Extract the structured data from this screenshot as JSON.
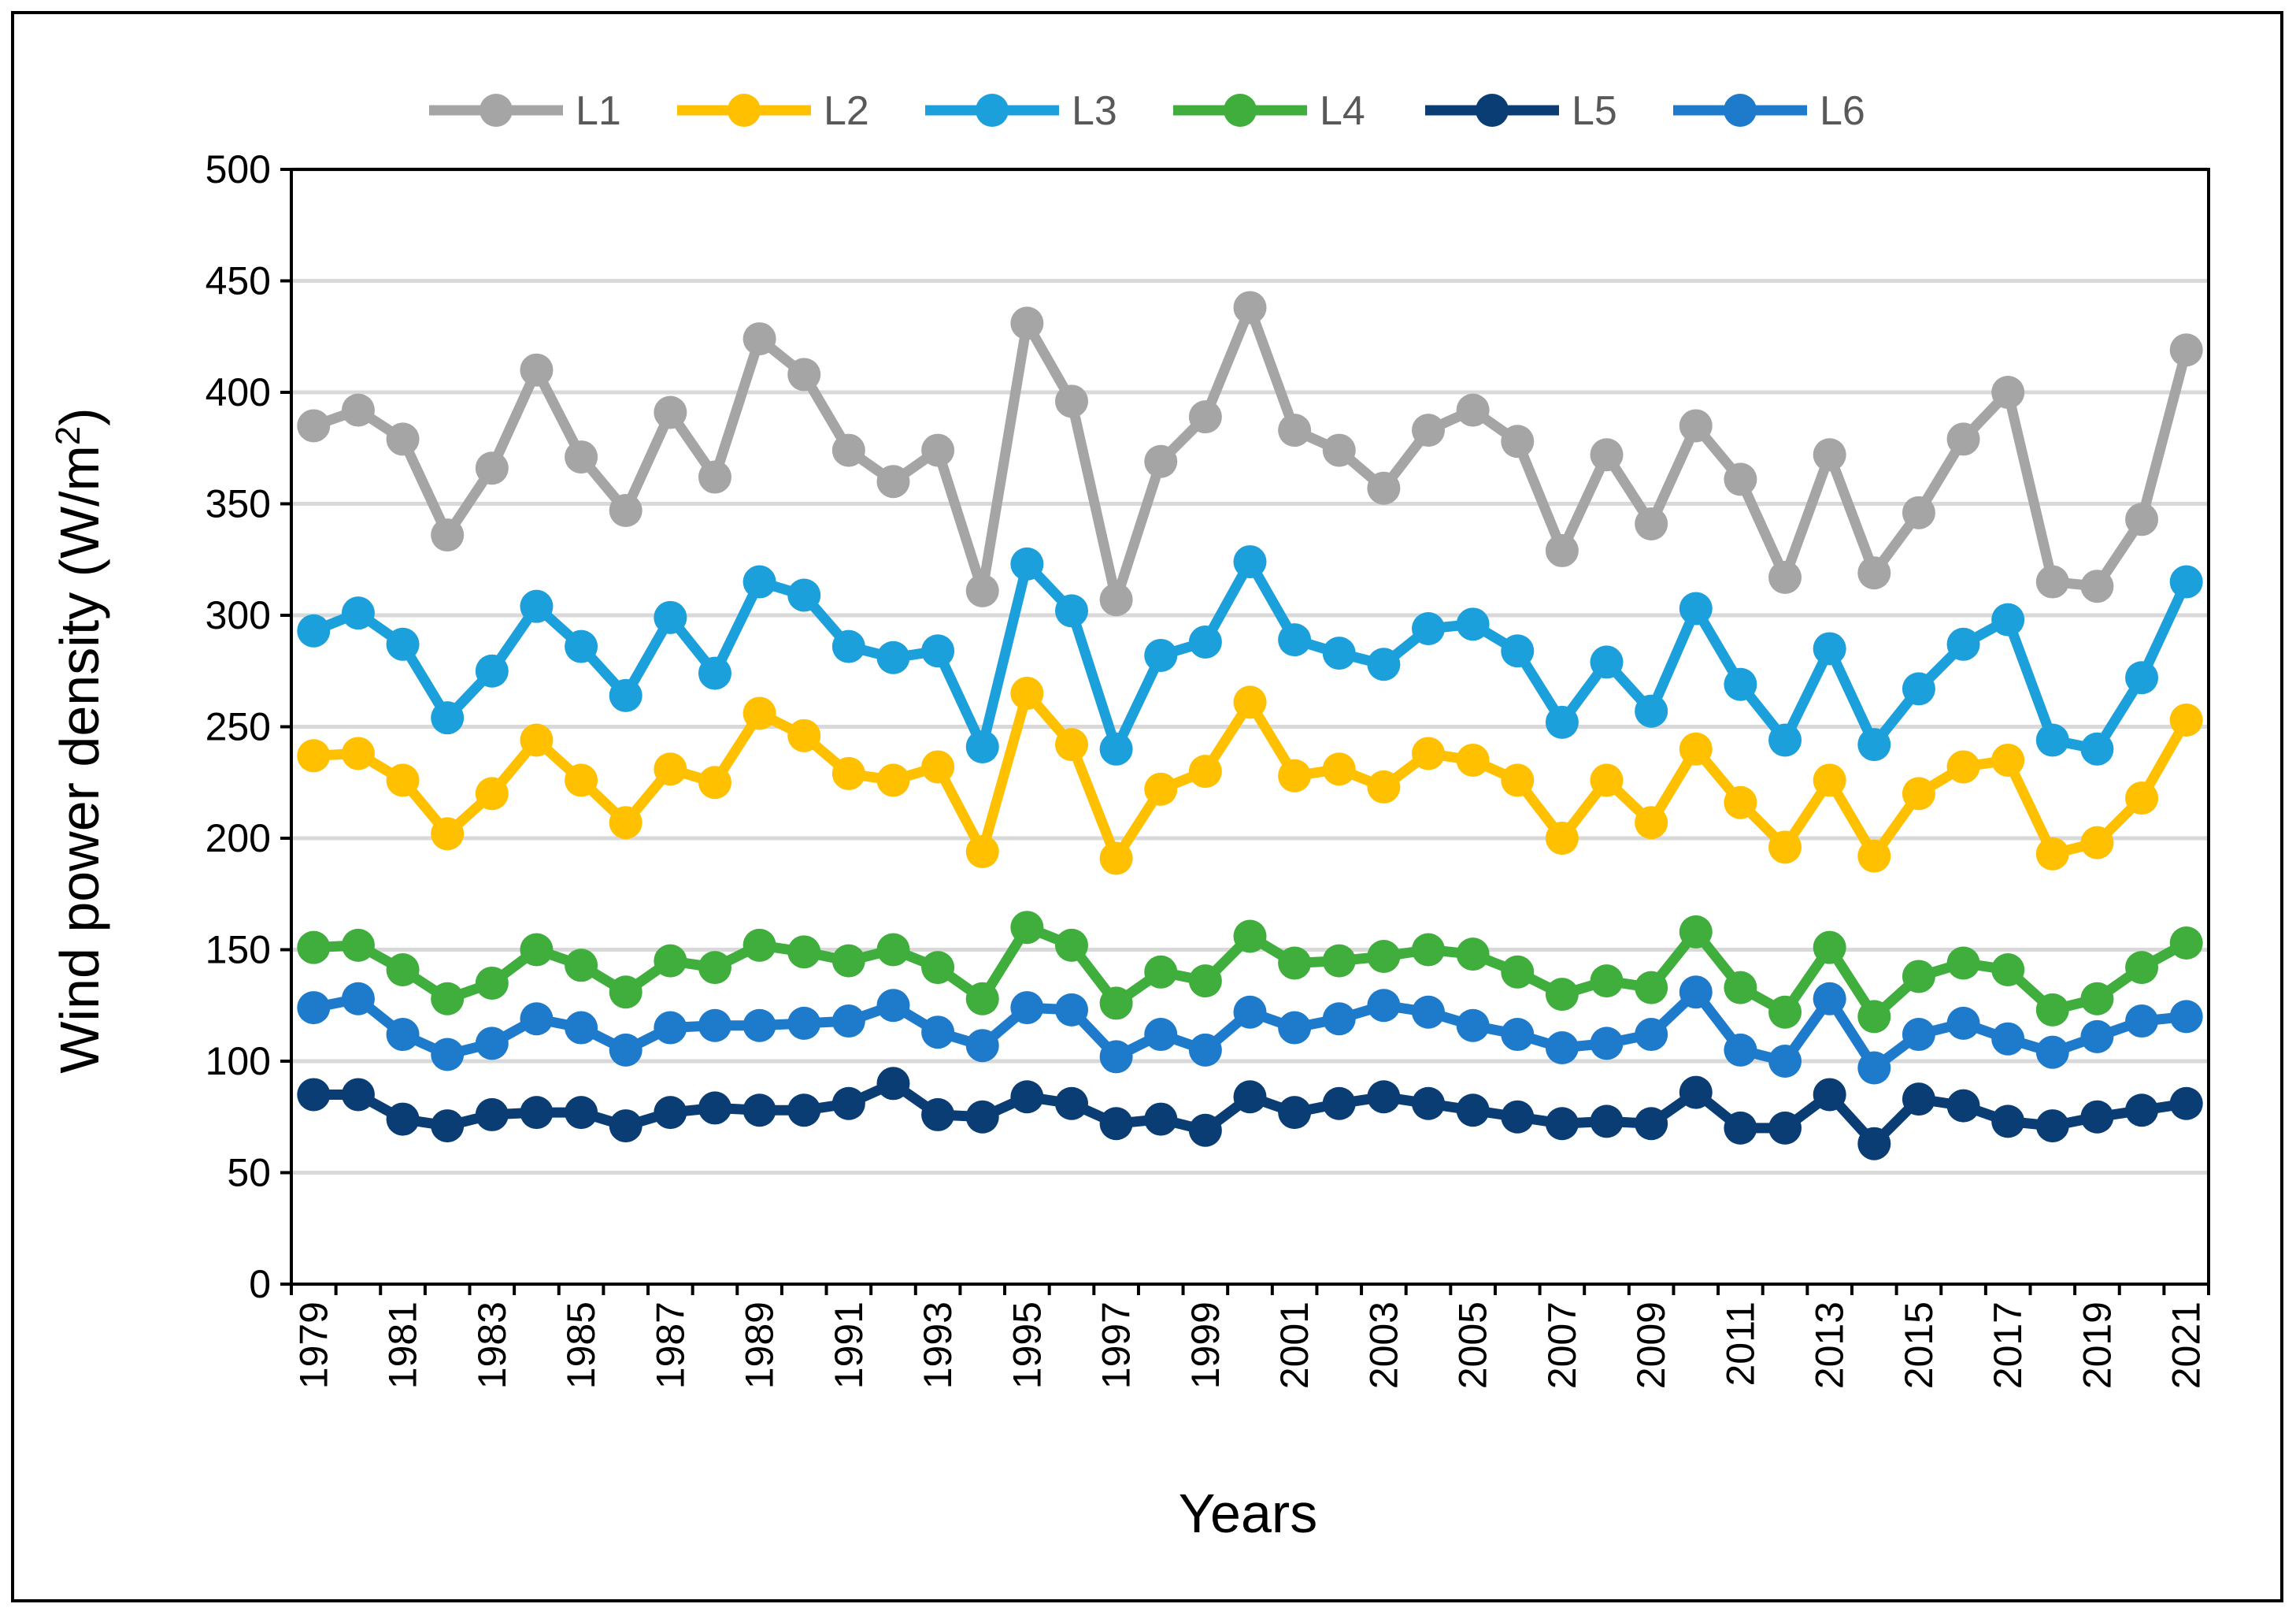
{
  "chart_data": {
    "type": "line",
    "title": "",
    "xlabel": "Years",
    "ylabel": "Wind power density (W/m",
    "ylabel_sup": "2",
    "ylabel_close": ")",
    "ylim": [
      0,
      500
    ],
    "yticks": [
      "0",
      "50",
      "100",
      "150",
      "200",
      "250",
      "300",
      "350",
      "400",
      "450",
      "500"
    ],
    "grid": true,
    "legend_position": "top",
    "x": [
      "1979",
      "1980",
      "1981",
      "1982",
      "1983",
      "1984",
      "1985",
      "1986",
      "1987",
      "1988",
      "1989",
      "1990",
      "1991",
      "1992",
      "1993",
      "1994",
      "1995",
      "1996",
      "1997",
      "1998",
      "1999",
      "2000",
      "2001",
      "2002",
      "2003",
      "2004",
      "2005",
      "2006",
      "2007",
      "2008",
      "2009",
      "2010",
      "2011",
      "2012",
      "2013",
      "2014",
      "2015",
      "2016",
      "2017",
      "2018",
      "2019",
      "2020",
      "2021"
    ],
    "xtick_labels": [
      "1979",
      "1981",
      "1983",
      "1985",
      "1987",
      "1989",
      "1991",
      "1993",
      "1995",
      "1997",
      "1999",
      "2001",
      "2003",
      "2005",
      "2007",
      "2009",
      "2011",
      "2013",
      "2015",
      "2017",
      "2019",
      "2021"
    ],
    "series": [
      {
        "name": "L1",
        "color": "#A5A5A5",
        "values": [
          385,
          392,
          379,
          336,
          366,
          410,
          371,
          347,
          391,
          362,
          424,
          408,
          374,
          360,
          374,
          311,
          431,
          396,
          307,
          369,
          389,
          438,
          383,
          374,
          357,
          383,
          392,
          378,
          329,
          372,
          341,
          385,
          361,
          317,
          372,
          319,
          346,
          379,
          400,
          315,
          313,
          343,
          419
        ]
      },
      {
        "name": "L2",
        "color": "#FFC000",
        "values": [
          237,
          238,
          226,
          202,
          220,
          244,
          226,
          207,
          231,
          225,
          256,
          246,
          229,
          226,
          232,
          194,
          265,
          242,
          191,
          222,
          230,
          261,
          228,
          231,
          223,
          238,
          235,
          226,
          200,
          226,
          207,
          240,
          216,
          196,
          226,
          192,
          220,
          232,
          235,
          193,
          198,
          218,
          253
        ]
      },
      {
        "name": "L3",
        "color": "#1CA0DB",
        "values": [
          293,
          301,
          287,
          254,
          275,
          304,
          286,
          264,
          299,
          274,
          315,
          309,
          286,
          281,
          284,
          241,
          323,
          302,
          240,
          282,
          288,
          324,
          289,
          283,
          278,
          294,
          296,
          284,
          252,
          279,
          257,
          303,
          269,
          244,
          285,
          242,
          267,
          287,
          298,
          244,
          240,
          272,
          315
        ]
      },
      {
        "name": "L4",
        "color": "#3FAE3C",
        "values": [
          151,
          152,
          141,
          128,
          135,
          150,
          143,
          131,
          145,
          142,
          152,
          149,
          145,
          150,
          142,
          128,
          160,
          152,
          126,
          140,
          136,
          156,
          144,
          145,
          147,
          150,
          148,
          140,
          130,
          136,
          133,
          158,
          133,
          122,
          151,
          120,
          138,
          144,
          141,
          123,
          128,
          142,
          153
        ]
      },
      {
        "name": "L5",
        "color": "#0B3D75",
        "values": [
          85,
          85,
          74,
          71,
          76,
          77,
          77,
          71,
          77,
          79,
          78,
          78,
          81,
          90,
          76,
          75,
          84,
          81,
          72,
          74,
          69,
          84,
          77,
          81,
          84,
          81,
          78,
          75,
          72,
          73,
          72,
          86,
          70,
          70,
          85,
          63,
          83,
          80,
          73,
          71,
          75,
          78,
          81
        ]
      },
      {
        "name": "L6",
        "color": "#1E7BCB",
        "values": [
          124,
          128,
          112,
          103,
          108,
          119,
          115,
          105,
          115,
          116,
          116,
          117,
          118,
          125,
          113,
          107,
          124,
          123,
          102,
          112,
          105,
          122,
          115,
          119,
          125,
          122,
          116,
          112,
          106,
          108,
          112,
          131,
          105,
          100,
          128,
          97,
          112,
          117,
          110,
          104,
          111,
          118,
          120
        ]
      }
    ]
  }
}
